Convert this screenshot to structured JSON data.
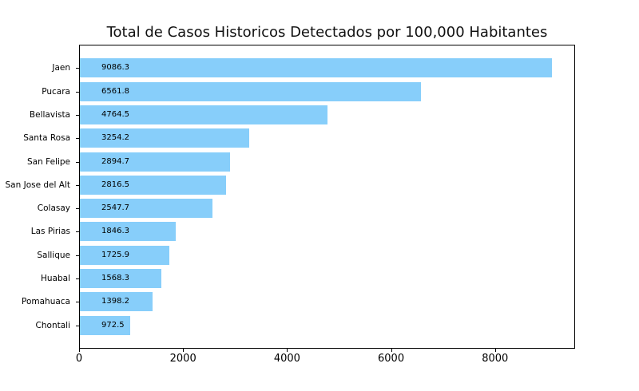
{
  "figure": {
    "background": "#ffffff"
  },
  "chart_data": {
    "type": "bar",
    "orientation": "horizontal",
    "title": "Total de Casos Historicos Detectados por 100,000 Habitantes",
    "xlabel": "",
    "ylabel": "",
    "categories": [
      "Jaen",
      "Pucara",
      "Bellavista",
      "Santa Rosa",
      "San Felipe",
      "San Jose del Alt",
      "Colasay",
      "Las Pirias",
      "Sallique",
      "Huabal",
      "Pomahuaca",
      "Chontali"
    ],
    "values": [
      9086.3,
      6561.8,
      4764.5,
      3254.2,
      2894.7,
      2816.5,
      2547.7,
      1846.3,
      1725.9,
      1568.3,
      1398.2,
      972.5
    ],
    "value_labels": [
      "9086.3",
      "6561.8",
      "4764.5",
      "3254.2",
      "2894.7",
      "2816.5",
      "2547.7",
      "1846.3",
      "1725.9",
      "1568.3",
      "1398.2",
      "972.5"
    ],
    "x_ticks": [
      0,
      2000,
      4000,
      6000,
      8000
    ],
    "x_tick_labels": [
      "0",
      "2000",
      "4000",
      "6000",
      "8000"
    ],
    "xlim": [
      0,
      9540
    ],
    "grid": false,
    "legend": null,
    "bar_color": "#87CEFA",
    "spine_color": "#000000",
    "text_color": "#000000"
  }
}
